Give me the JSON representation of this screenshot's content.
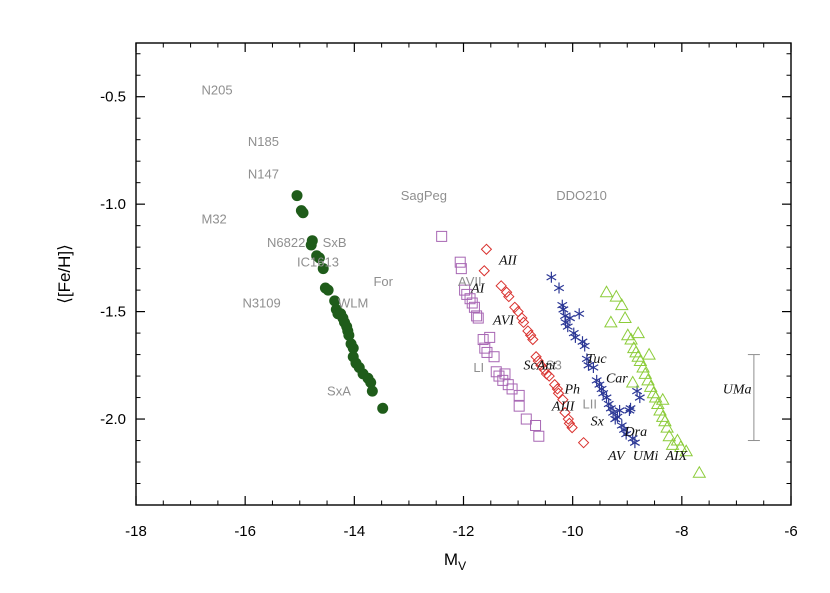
{
  "chart_data": {
    "type": "scatter",
    "xlabel": "M",
    "xlabel_sub": "V",
    "ylabel": "⟨[Fe/H]⟩",
    "xlim": [
      -18,
      -6
    ],
    "ylim": [
      -2.4,
      -0.25
    ],
    "x_ticks": [
      -18,
      -16,
      -14,
      -12,
      -10,
      -8,
      -6
    ],
    "y_ticks": [
      -2.0,
      -1.5,
      -1.0,
      -0.5
    ],
    "x_tick_labels": [
      "-18",
      "-16",
      "-14",
      "-12",
      "-10",
      "-8",
      "-6"
    ],
    "y_tick_labels": [
      "-2.0",
      "-1.5",
      "-1.0",
      "-0.5"
    ],
    "colors": {
      "green": "#1f5c1a",
      "purple": "#a766b3",
      "red": "#d9312e",
      "blue": "#2c3896",
      "lightgreen": "#8ccc3a",
      "gray": "#8f8f8f",
      "black": "#111111"
    },
    "series": [
      {
        "marker": "circle-filled",
        "color": "#1f5c1a",
        "points": [
          [
            -15.05,
            -0.96
          ],
          [
            -14.97,
            -1.03
          ],
          [
            -14.94,
            -1.04
          ],
          [
            -14.79,
            -1.19
          ],
          [
            -14.77,
            -1.17
          ],
          [
            -14.69,
            -1.24
          ],
          [
            -14.64,
            -1.25
          ],
          [
            -14.57,
            -1.3
          ],
          [
            -14.53,
            -1.39
          ],
          [
            -14.48,
            -1.4
          ],
          [
            -14.36,
            -1.45
          ],
          [
            -14.33,
            -1.49
          ],
          [
            -14.3,
            -1.51
          ],
          [
            -14.25,
            -1.51
          ],
          [
            -14.21,
            -1.53
          ],
          [
            -14.18,
            -1.55
          ],
          [
            -14.14,
            -1.57
          ],
          [
            -14.12,
            -1.59
          ],
          [
            -14.1,
            -1.61
          ],
          [
            -14.06,
            -1.65
          ],
          [
            -14.02,
            -1.67
          ],
          [
            -14.02,
            -1.71
          ],
          [
            -13.97,
            -1.74
          ],
          [
            -13.91,
            -1.76
          ],
          [
            -13.84,
            -1.79
          ],
          [
            -13.75,
            -1.81
          ],
          [
            -13.7,
            -1.83
          ],
          [
            -13.67,
            -1.87
          ],
          [
            -13.48,
            -1.95
          ]
        ]
      },
      {
        "marker": "square",
        "color": "#a766b3",
        "points": [
          [
            -12.4,
            -1.15
          ],
          [
            -12.06,
            -1.27
          ],
          [
            -12.04,
            -1.3
          ],
          [
            -11.98,
            -1.4
          ],
          [
            -11.94,
            -1.42
          ],
          [
            -11.88,
            -1.44
          ],
          [
            -11.84,
            -1.46
          ],
          [
            -11.8,
            -1.48
          ],
          [
            -11.76,
            -1.52
          ],
          [
            -11.73,
            -1.53
          ],
          [
            -11.64,
            -1.63
          ],
          [
            -11.61,
            -1.67
          ],
          [
            -11.57,
            -1.69
          ],
          [
            -11.52,
            -1.62
          ],
          [
            -11.44,
            -1.71
          ],
          [
            -11.4,
            -1.78
          ],
          [
            -11.35,
            -1.8
          ],
          [
            -11.28,
            -1.82
          ],
          [
            -11.24,
            -1.79
          ],
          [
            -11.18,
            -1.84
          ],
          [
            -11.11,
            -1.86
          ],
          [
            -10.98,
            -1.89
          ],
          [
            -10.98,
            -1.94
          ],
          [
            -10.85,
            -2.0
          ],
          [
            -10.68,
            -2.03
          ],
          [
            -10.62,
            -2.08
          ]
        ]
      },
      {
        "marker": "diamond",
        "color": "#d9312e",
        "points": [
          [
            -11.58,
            -1.21
          ],
          [
            -11.62,
            -1.31
          ],
          [
            -11.31,
            -1.38
          ],
          [
            -11.21,
            -1.41
          ],
          [
            -11.17,
            -1.43
          ],
          [
            -11.06,
            -1.48
          ],
          [
            -11.0,
            -1.5
          ],
          [
            -10.93,
            -1.53
          ],
          [
            -10.9,
            -1.55
          ],
          [
            -10.82,
            -1.59
          ],
          [
            -10.77,
            -1.61
          ],
          [
            -10.73,
            -1.63
          ],
          [
            -10.67,
            -1.71
          ],
          [
            -10.63,
            -1.73
          ],
          [
            -10.58,
            -1.75
          ],
          [
            -10.52,
            -1.77
          ],
          [
            -10.48,
            -1.79
          ],
          [
            -10.43,
            -1.8
          ],
          [
            -10.33,
            -1.84
          ],
          [
            -10.28,
            -1.86
          ],
          [
            -10.26,
            -1.88
          ],
          [
            -10.18,
            -1.91
          ],
          [
            -10.14,
            -1.97
          ],
          [
            -10.08,
            -2.0
          ],
          [
            -10.06,
            -2.02
          ],
          [
            -10.01,
            -2.04
          ],
          [
            -9.8,
            -2.11
          ]
        ]
      },
      {
        "marker": "asterisk",
        "color": "#2c3896",
        "points": [
          [
            -10.39,
            -1.34
          ],
          [
            -10.25,
            -1.39
          ],
          [
            -10.19,
            -1.47
          ],
          [
            -10.17,
            -1.49
          ],
          [
            -10.14,
            -1.52
          ],
          [
            -10.13,
            -1.55
          ],
          [
            -10.09,
            -1.57
          ],
          [
            -10.05,
            -1.53
          ],
          [
            -9.98,
            -1.6
          ],
          [
            -9.95,
            -1.62
          ],
          [
            -9.88,
            -1.51
          ],
          [
            -9.82,
            -1.64
          ],
          [
            -9.78,
            -1.66
          ],
          [
            -9.74,
            -1.72
          ],
          [
            -9.71,
            -1.75
          ],
          [
            -9.62,
            -1.76
          ],
          [
            -9.56,
            -1.82
          ],
          [
            -9.51,
            -1.84
          ],
          [
            -9.47,
            -1.86
          ],
          [
            -9.44,
            -1.88
          ],
          [
            -9.38,
            -1.9
          ],
          [
            -9.34,
            -1.93
          ],
          [
            -9.3,
            -1.95
          ],
          [
            -9.26,
            -1.97
          ],
          [
            -9.22,
            -2.0
          ],
          [
            -9.18,
            -1.99
          ],
          [
            -9.14,
            -1.96
          ],
          [
            -9.1,
            -2.03
          ],
          [
            -9.06,
            -2.05
          ],
          [
            -9.02,
            -2.07
          ],
          [
            -8.96,
            -1.96
          ],
          [
            -8.94,
            -1.95
          ],
          [
            -8.9,
            -2.09
          ],
          [
            -8.86,
            -2.11
          ],
          [
            -8.82,
            -1.87
          ],
          [
            -8.77,
            -1.9
          ]
        ]
      },
      {
        "marker": "triangle",
        "color": "#8ccc3a",
        "points": [
          [
            -9.38,
            -1.41
          ],
          [
            -9.2,
            -1.43
          ],
          [
            -9.1,
            -1.47
          ],
          [
            -9.04,
            -1.53
          ],
          [
            -8.99,
            -1.61
          ],
          [
            -8.93,
            -1.63
          ],
          [
            -8.88,
            -1.67
          ],
          [
            -8.84,
            -1.69
          ],
          [
            -8.8,
            -1.71
          ],
          [
            -8.76,
            -1.73
          ],
          [
            -8.71,
            -1.76
          ],
          [
            -8.67,
            -1.79
          ],
          [
            -8.62,
            -1.82
          ],
          [
            -8.57,
            -1.85
          ],
          [
            -8.52,
            -1.88
          ],
          [
            -8.48,
            -1.9
          ],
          [
            -8.44,
            -1.93
          ],
          [
            -8.4,
            -1.96
          ],
          [
            -8.35,
            -1.99
          ],
          [
            -8.31,
            -2.01
          ],
          [
            -8.27,
            -2.04
          ],
          [
            -8.23,
            -2.08
          ],
          [
            -8.17,
            -2.12
          ],
          [
            -8.08,
            -2.1
          ],
          [
            -8.02,
            -2.13
          ],
          [
            -7.92,
            -2.15
          ],
          [
            -7.68,
            -2.25
          ],
          [
            -8.8,
            -1.6
          ],
          [
            -8.6,
            -1.7
          ],
          [
            -9.3,
            -1.55
          ],
          [
            -8.9,
            -1.83
          ],
          [
            -8.35,
            -1.91
          ]
        ]
      }
    ],
    "error_bar": {
      "x": -6.68,
      "y_low": -2.1,
      "y_high": -1.7,
      "y_center": -1.9
    },
    "annotations_gray": [
      {
        "text": "N205",
        "x": -16.8,
        "y": -0.49
      },
      {
        "text": "N185",
        "x": -15.95,
        "y": -0.73
      },
      {
        "text": "N147",
        "x": -15.95,
        "y": -0.88
      },
      {
        "text": "M32",
        "x": -16.8,
        "y": -1.09
      },
      {
        "text": "SagPeg",
        "x": -13.15,
        "y": -0.98
      },
      {
        "text": "DDO210",
        "x": -10.3,
        "y": -0.98
      },
      {
        "text": "N6822",
        "x": -15.6,
        "y": -1.2
      },
      {
        "text": "SxB",
        "x": -14.58,
        "y": -1.2
      },
      {
        "text": "IC1613",
        "x": -15.05,
        "y": -1.29
      },
      {
        "text": "For",
        "x": -13.65,
        "y": -1.38
      },
      {
        "text": "AVII",
        "x": -12.1,
        "y": -1.38
      },
      {
        "text": "N3109",
        "x": -16.05,
        "y": -1.48
      },
      {
        "text": "WLM",
        "x": -14.3,
        "y": -1.48
      },
      {
        "text": "SxA",
        "x": -14.5,
        "y": -1.89
      },
      {
        "text": "LI",
        "x": -11.82,
        "y": -1.78
      },
      {
        "text": "S3",
        "x": -10.49,
        "y": -1.77
      },
      {
        "text": "LII",
        "x": -9.82,
        "y": -1.95
      }
    ],
    "annotations_black": [
      {
        "text": "AII",
        "x": -11.35,
        "y": -1.28
      },
      {
        "text": "AI",
        "x": -11.86,
        "y": -1.41
      },
      {
        "text": "AVI",
        "x": -11.46,
        "y": -1.56
      },
      {
        "text": "ScAnt",
        "x": -10.9,
        "y": -1.77
      },
      {
        "text": "Tuc",
        "x": -9.75,
        "y": -1.74
      },
      {
        "text": "Car",
        "x": -9.39,
        "y": -1.83
      },
      {
        "text": "Ph",
        "x": -10.15,
        "y": -1.88
      },
      {
        "text": "UMa",
        "x": -7.25,
        "y": -1.88
      },
      {
        "text": "AIII",
        "x": -10.38,
        "y": -1.96
      },
      {
        "text": "Sx",
        "x": -9.67,
        "y": -2.03
      },
      {
        "text": "Dra",
        "x": -9.05,
        "y": -2.08
      },
      {
        "text": "AV",
        "x": -9.35,
        "y": -2.19
      },
      {
        "text": "UMi",
        "x": -8.9,
        "y": -2.19
      },
      {
        "text": "AIX",
        "x": -8.3,
        "y": -2.19
      }
    ]
  }
}
